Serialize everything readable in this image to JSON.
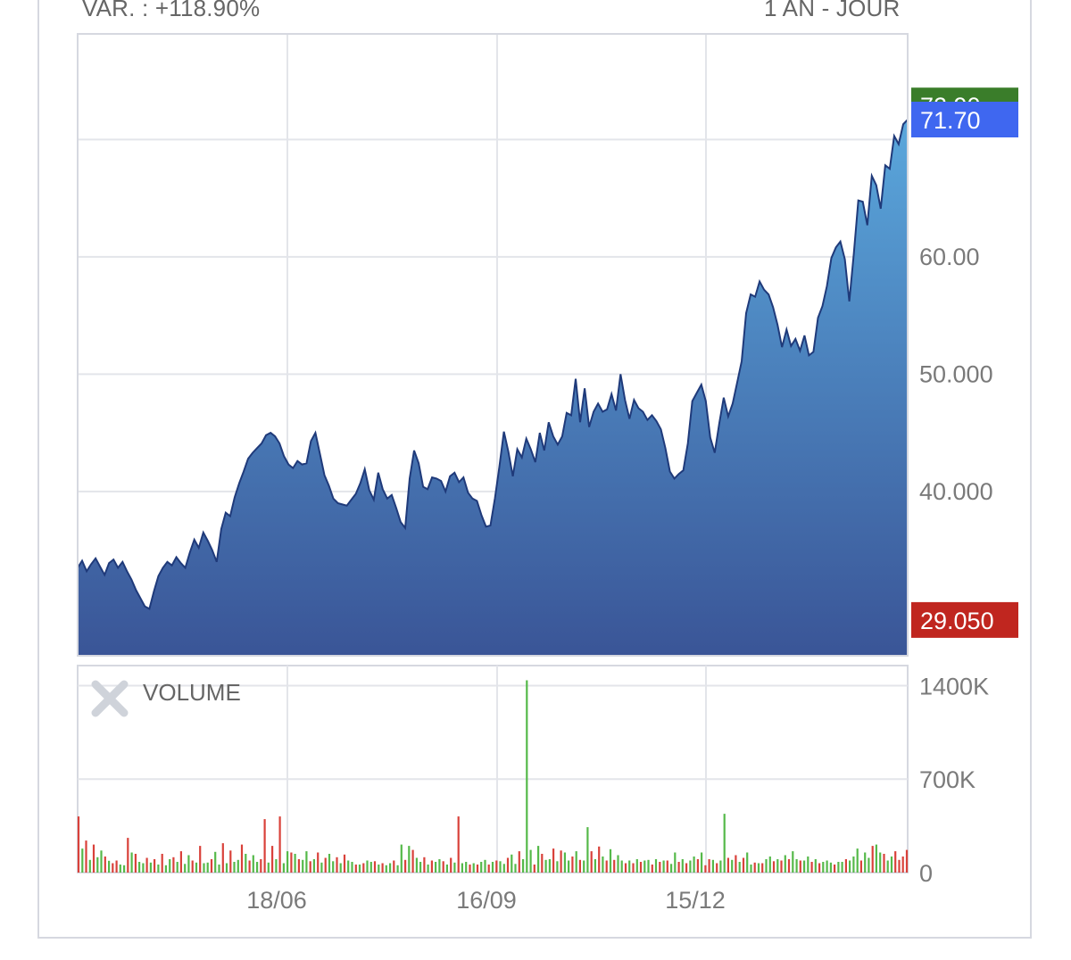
{
  "header": {
    "change_label": "VAR. : +118.90%",
    "period_label": "1 AN - JOUR"
  },
  "colors": {
    "line": "#1f3a7a",
    "area_top": "#5aa7dc",
    "area_bottom": "#3a5597",
    "grid": "#e3e5ea",
    "border": "#d6d8e0",
    "volume_up": "#55b94a",
    "volume_down": "#d9413a",
    "badge_high": "#3a7d2a",
    "badge_last": "#3f67f0",
    "badge_low": "#c0261f"
  },
  "icons": {
    "volume_close": "close-icon"
  },
  "chart_data": [
    {
      "type": "area",
      "title": "",
      "xlabel": "",
      "ylabel": "",
      "ylim": [
        26.0,
        79.0
      ],
      "grid": true,
      "x_ticks": [
        "18/06",
        "16/09",
        "15/12"
      ],
      "y_ticks": [
        {
          "value": 60.0,
          "label": "60.00"
        },
        {
          "value": 50.0,
          "label": "50.000"
        },
        {
          "value": 40.0,
          "label": "40.000"
        }
      ],
      "badges": {
        "high": {
          "value": 72.9,
          "label": "72.90"
        },
        "last": {
          "value": 71.7,
          "label": "71.70"
        },
        "low": {
          "value": 29.05,
          "label": "29.050"
        }
      },
      "series": [
        {
          "values": [
            33.5,
            34.1,
            33.2,
            33.8,
            34.3,
            33.6,
            32.9,
            33.9,
            34.2,
            33.5,
            34.0,
            33.2,
            32.5,
            31.6,
            30.9,
            30.2,
            30.0,
            31.5,
            32.8,
            33.5,
            34.0,
            33.7,
            34.4,
            33.9,
            33.5,
            34.8,
            35.9,
            35.2,
            36.5,
            35.8,
            35.0,
            34.0,
            36.8,
            38.2,
            37.9,
            39.5,
            40.7,
            41.7,
            42.8,
            43.3,
            43.7,
            44.1,
            44.8,
            45.0,
            44.7,
            44.1,
            43.0,
            42.3,
            42.0,
            42.6,
            42.3,
            42.4,
            44.3,
            45.0,
            43.2,
            41.4,
            40.5,
            39.4,
            39.0,
            38.9,
            38.8,
            39.3,
            39.8,
            40.7,
            41.9,
            40.1,
            39.3,
            41.6,
            40.2,
            39.4,
            39.7,
            38.6,
            37.4,
            36.9,
            41.1,
            43.5,
            42.4,
            40.4,
            40.2,
            41.2,
            41.1,
            40.9,
            40.0,
            41.3,
            41.6,
            40.8,
            41.2,
            39.9,
            39.4,
            39.2,
            38.0,
            37.0,
            37.1,
            39.4,
            42.1,
            45.1,
            43.4,
            41.3,
            43.6,
            42.9,
            44.5,
            43.6,
            42.5,
            45.0,
            43.5,
            45.9,
            44.7,
            44.0,
            44.7,
            46.7,
            46.5,
            49.6,
            45.9,
            48.8,
            45.5,
            46.8,
            47.5,
            46.8,
            47.0,
            48.3,
            46.9,
            50.0,
            47.8,
            46.2,
            47.8,
            47.1,
            46.8,
            46.1,
            46.5,
            46.0,
            45.3,
            43.7,
            41.7,
            41.1,
            41.5,
            41.8,
            44.1,
            47.7,
            48.4,
            49.1,
            47.7,
            44.6,
            43.3,
            45.8,
            48.0,
            46.4,
            47.5,
            49.3,
            51.1,
            55.2,
            56.8,
            56.6,
            57.9,
            57.2,
            56.8,
            55.7,
            54.2,
            52.3,
            53.8,
            52.4,
            53.0,
            52.0,
            53.3,
            51.6,
            51.9,
            54.8,
            55.8,
            57.5,
            59.9,
            60.8,
            61.3,
            59.8,
            56.2,
            60.3,
            64.8,
            64.7,
            62.7,
            66.9,
            66.1,
            64.1,
            67.8,
            67.5,
            70.3,
            69.6,
            71.3,
            71.7
          ]
        }
      ]
    },
    {
      "type": "bar",
      "title": "VOLUME",
      "ylim": [
        0,
        1550
      ],
      "y_ticks": [
        {
          "value": 1400,
          "label": "1400K"
        },
        {
          "value": 700,
          "label": "700K"
        },
        {
          "value": 0,
          "label": "0"
        }
      ],
      "unit": "K",
      "values_k": [
        420,
        180,
        240,
        95,
        210,
        115,
        165,
        120,
        88,
        70,
        90,
        60,
        55,
        260,
        150,
        140,
        80,
        70,
        110,
        75,
        100,
        60,
        140,
        55,
        100,
        115,
        80,
        160,
        65,
        130,
        90,
        75,
        200,
        70,
        75,
        100,
        155,
        60,
        220,
        70,
        165,
        80,
        95,
        210,
        140,
        90,
        130,
        80,
        100,
        400,
        75,
        200,
        100,
        420,
        70,
        160,
        150,
        140,
        100,
        95,
        160,
        85,
        100,
        150,
        75,
        110,
        140,
        85,
        115,
        70,
        135,
        90,
        80,
        60,
        60,
        70,
        90,
        80,
        85,
        60,
        70,
        55,
        70,
        90,
        55,
        210,
        95,
        200,
        170,
        110,
        80,
        115,
        60,
        90,
        80,
        100,
        85,
        60,
        110,
        75,
        420,
        70,
        80,
        60,
        70,
        60,
        80,
        95,
        60,
        80,
        90,
        85,
        65,
        110,
        135,
        65,
        160,
        100,
        1440,
        170,
        60,
        200,
        140,
        95,
        100,
        180,
        85,
        165,
        150,
        90,
        120,
        160,
        95,
        90,
        340,
        160,
        100,
        195,
        120,
        90,
        175,
        95,
        130,
        90,
        70,
        90,
        70,
        100,
        80,
        90,
        95,
        60,
        100,
        80,
        90,
        90,
        65,
        150,
        80,
        100,
        70,
        90,
        120,
        100,
        150,
        55,
        100,
        95,
        70,
        90,
        440,
        110,
        95,
        130,
        80,
        110,
        150,
        60,
        75,
        70,
        70,
        100,
        120,
        85,
        100,
        90,
        130,
        100,
        160,
        100,
        90,
        90,
        120,
        80,
        100,
        70,
        80,
        90,
        75,
        60,
        80,
        80,
        100,
        90,
        120,
        180,
        90,
        150,
        110,
        200,
        210,
        150,
        140,
        90,
        120,
        160,
        95,
        120,
        170
      ],
      "up": [
        0,
        1,
        0,
        1,
        0,
        1,
        1,
        0,
        1,
        0,
        0,
        1,
        1,
        0,
        1,
        0,
        1,
        1,
        0,
        1,
        0,
        1,
        0,
        1,
        1,
        0,
        1,
        0,
        1,
        1,
        0,
        1,
        0,
        1,
        1,
        0,
        1,
        1,
        0,
        1,
        0,
        1,
        1,
        0,
        1,
        0,
        1,
        1,
        0,
        0,
        1,
        0,
        1,
        0,
        1,
        1,
        0,
        1,
        0,
        1,
        1,
        0,
        1,
        0,
        1,
        0,
        1,
        1,
        0,
        1,
        0,
        1,
        1,
        0,
        1,
        0,
        1,
        1,
        0,
        1,
        0,
        1,
        1,
        0,
        1,
        1,
        0,
        1,
        0,
        1,
        1,
        0,
        1,
        0,
        1,
        1,
        0,
        1,
        0,
        1,
        0,
        1,
        1,
        0,
        1,
        0,
        1,
        1,
        0,
        1,
        0,
        1,
        1,
        0,
        1,
        1,
        0,
        1,
        1,
        1,
        0,
        1,
        0,
        1,
        1,
        0,
        1,
        0,
        1,
        1,
        0,
        1,
        0,
        1,
        1,
        0,
        1,
        0,
        1,
        0,
        1,
        0,
        1,
        1,
        0,
        1,
        0,
        1,
        0,
        1,
        1,
        0,
        1,
        0,
        1,
        0,
        1,
        1,
        0,
        1,
        0,
        1,
        1,
        0,
        1,
        0,
        0,
        1,
        0,
        1,
        1,
        0,
        1,
        0,
        1,
        0,
        1,
        1,
        0,
        1,
        0,
        1,
        1,
        0,
        1,
        0,
        1,
        0,
        1,
        1,
        0,
        1,
        1,
        0,
        1,
        0,
        1,
        1,
        1,
        0,
        1,
        1,
        0,
        1,
        1,
        1,
        0,
        1,
        1,
        0,
        1,
        1,
        0,
        1,
        1
      ]
    }
  ]
}
